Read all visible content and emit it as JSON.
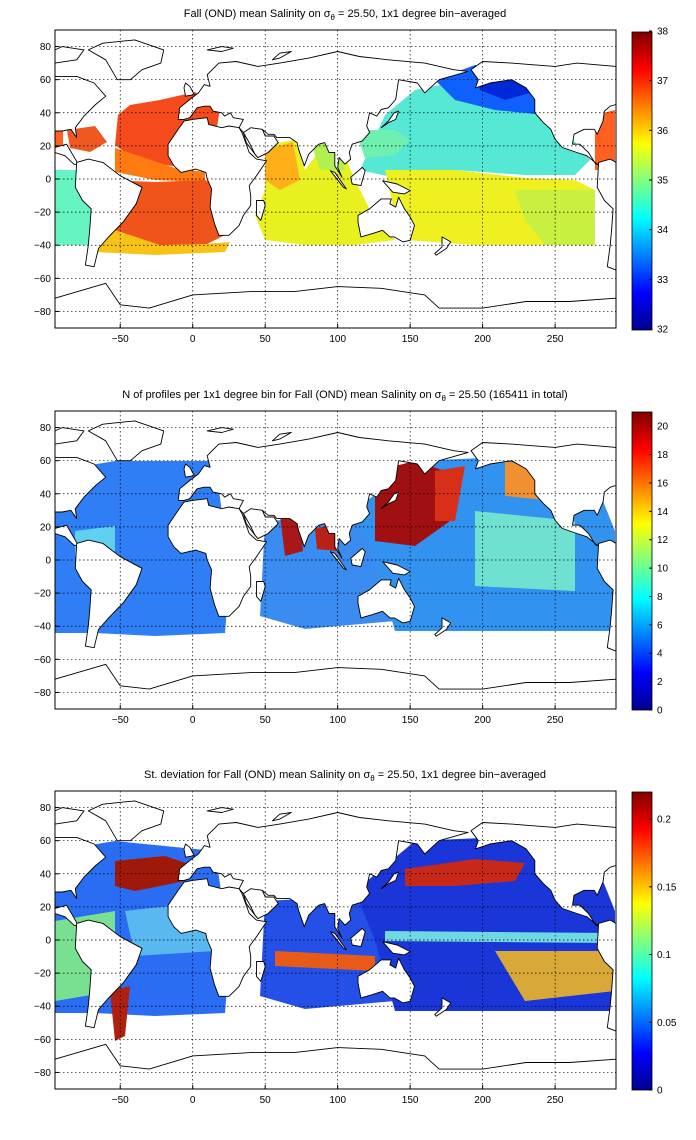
{
  "figure": {
    "panels": [
      {
        "id": "mean",
        "title_prefix": "Fall (OND) mean Salinity on ",
        "title_suffix": " = 25.50, 1x1 degree bin−averaged",
        "colormap": "jet",
        "colorbar": {
          "range": [
            32,
            38
          ],
          "ticks": [
            "32",
            "33",
            "34",
            "35",
            "36",
            "37",
            "38"
          ]
        }
      },
      {
        "id": "count",
        "title_prefix": "N of profiles per 1x1 degree bin for Fall (OND) mean Salinity on ",
        "title_suffix": " = 25.50 (165411 in total)",
        "colormap": "jet",
        "colorbar": {
          "range": [
            0,
            21
          ],
          "ticks": [
            "0",
            "2",
            "4",
            "6",
            "8",
            "10",
            "12",
            "14",
            "16",
            "18",
            "20"
          ]
        }
      },
      {
        "id": "std",
        "title_prefix": "St. deviation for Fall (OND) mean Salinity on ",
        "title_suffix": " = 25.50, 1x1 degree bin−averaged",
        "colormap": "jet",
        "colorbar": {
          "range": [
            0,
            0.22
          ],
          "ticks": [
            "0",
            "0.05",
            "0.1",
            "0.15",
            "0.2"
          ]
        }
      }
    ],
    "sigma_symbol": "σ",
    "sigma_subscript": "θ",
    "x_ticks": [
      "−50",
      "0",
      "50",
      "100",
      "150",
      "200",
      "250"
    ],
    "y_ticks": [
      "80",
      "60",
      "40",
      "20",
      "0",
      "−20",
      "−40",
      "−60",
      "−80"
    ],
    "x_range": [
      -95,
      292
    ],
    "y_range": [
      -90,
      90
    ]
  }
}
